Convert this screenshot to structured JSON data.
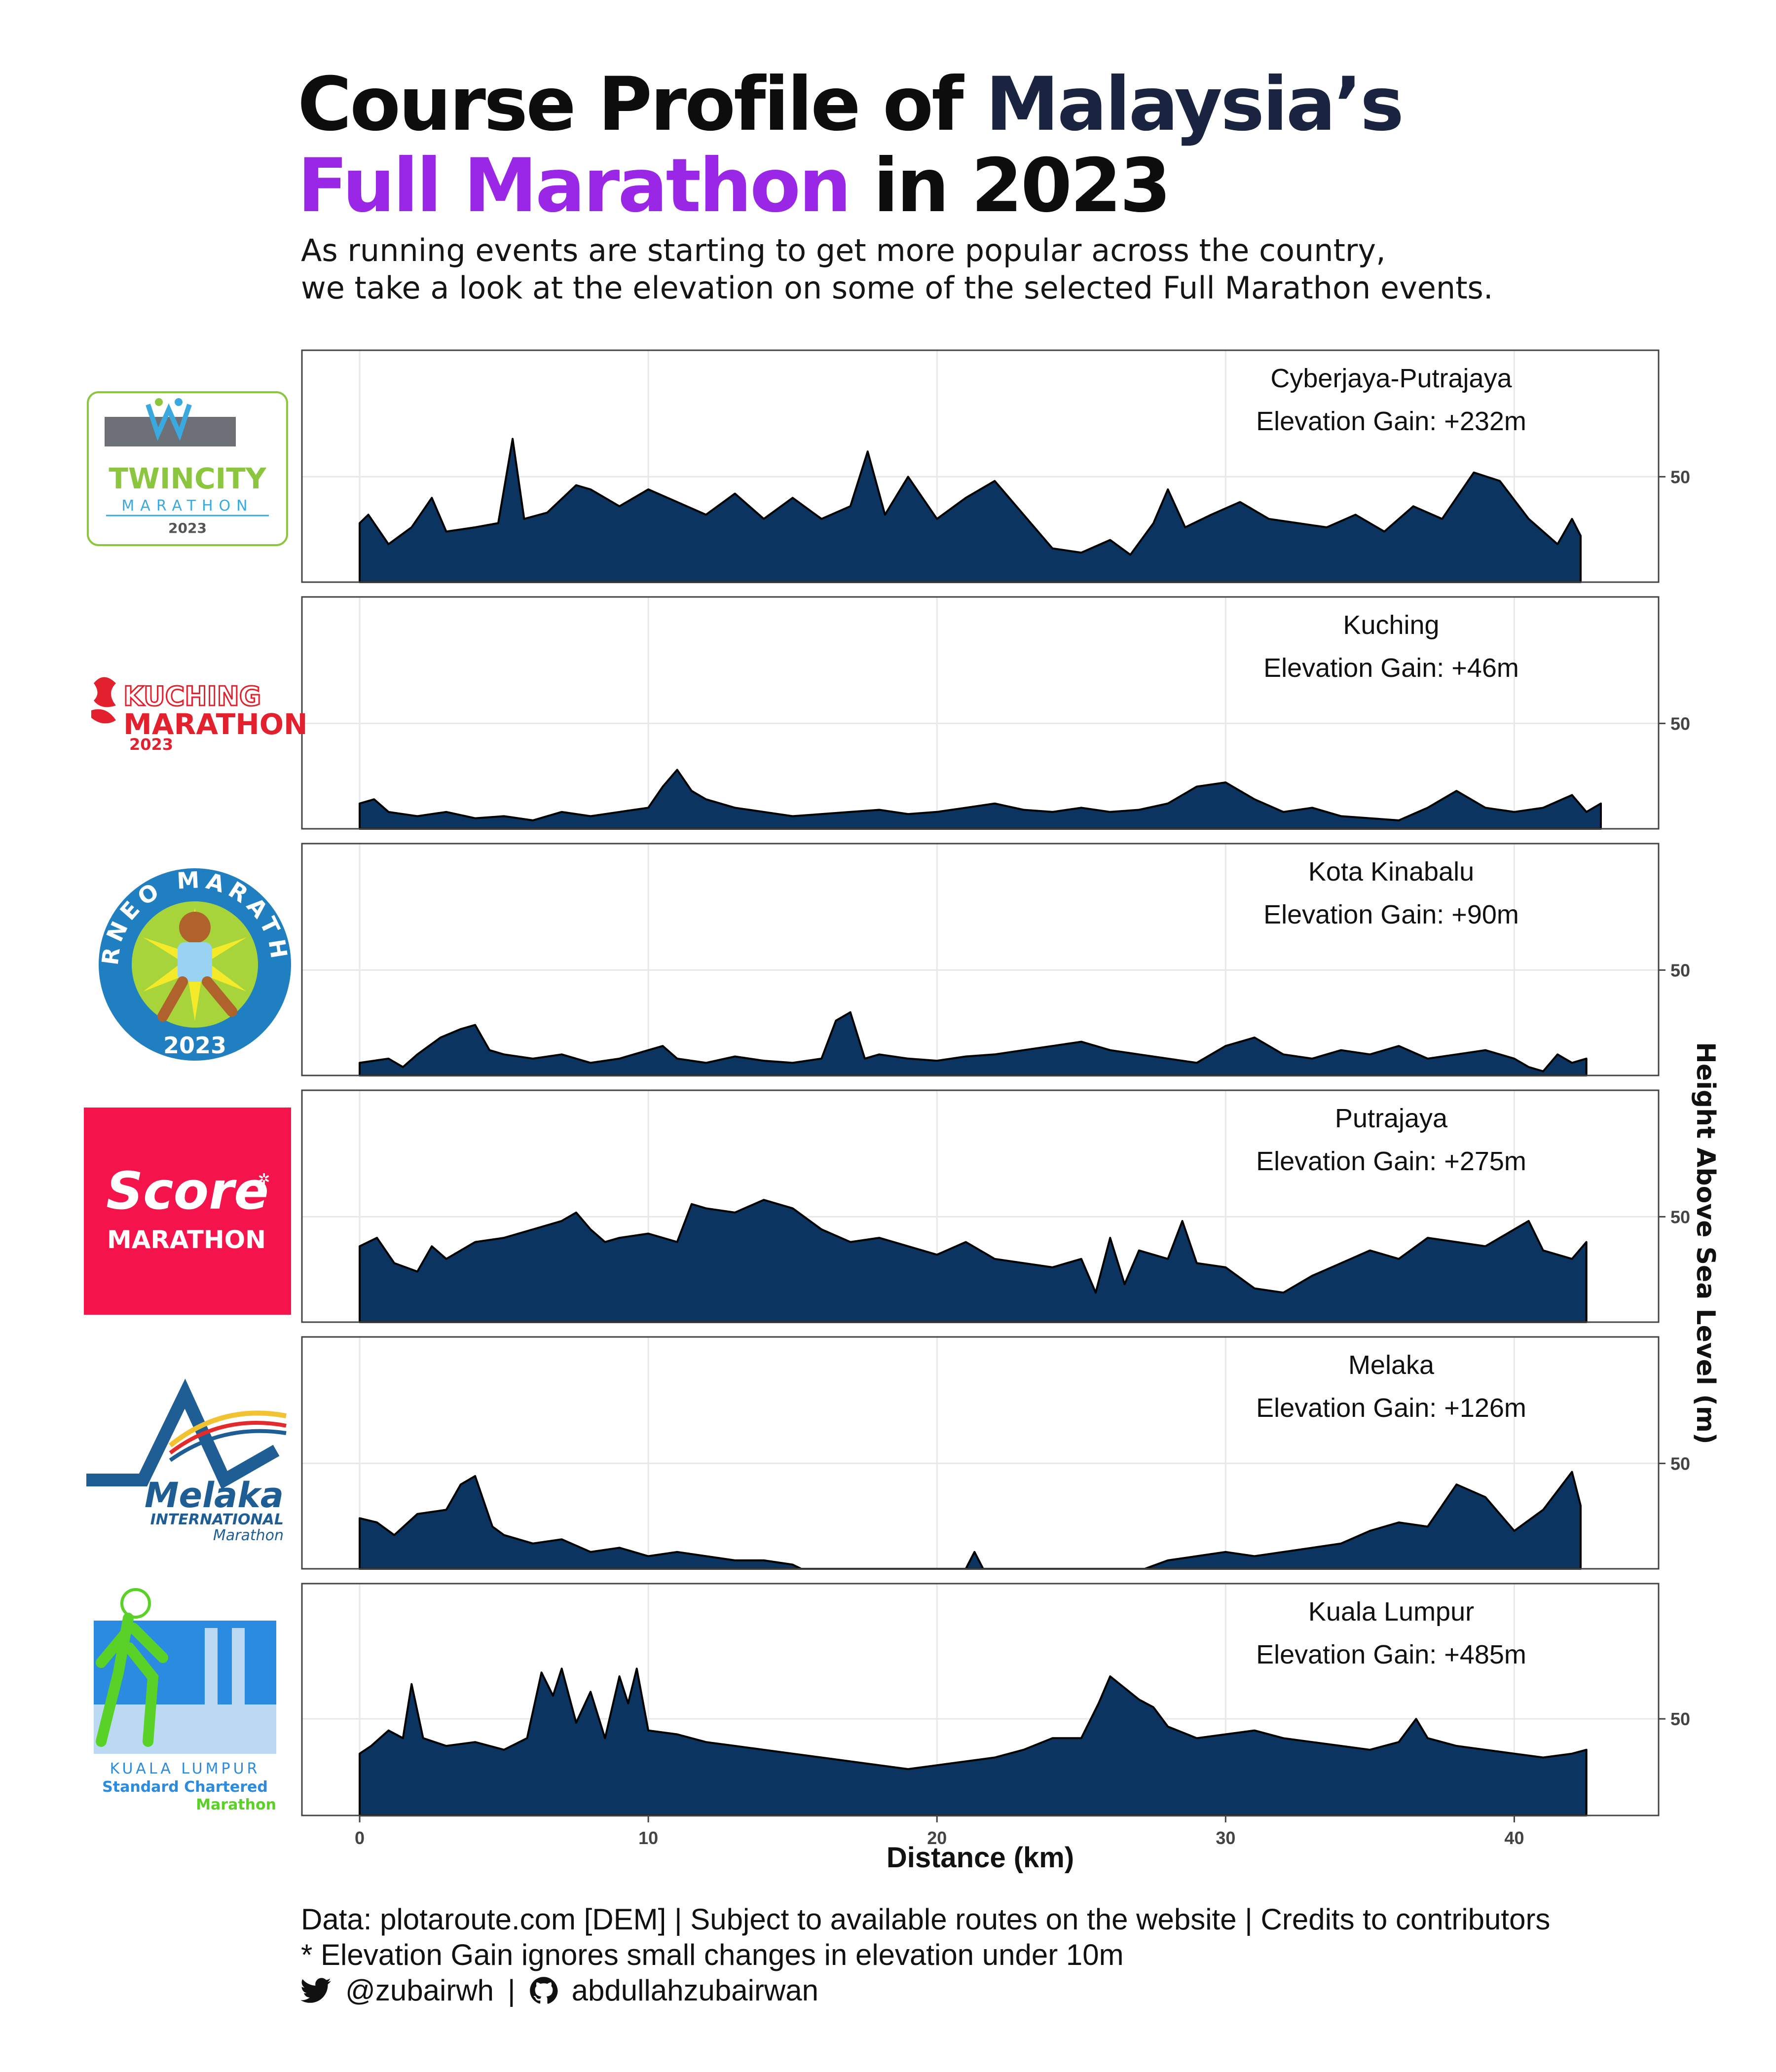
{
  "title": {
    "part1": "Course Profile of ",
    "part2": "Malaysia’s",
    "part3": "Full Marathon",
    "part4": " in 2023"
  },
  "subtitle": {
    "line1": "As running events are starting to get more popular across the country,",
    "line2": "we take a look at the elevation on some of the selected Full Marathon events."
  },
  "colors": {
    "area_fill": "#0b3461",
    "title_navy": "#1a2340",
    "title_purple": "#9b27e6",
    "panel_border": "#444444",
    "grid": "#e8e8e8"
  },
  "chart_data": {
    "type": "area",
    "xlabel": "Distance (km)",
    "ylabel": "Height Above Sea Level (m)",
    "xlim": [
      -2,
      45
    ],
    "x_ticks": [
      0,
      10,
      20,
      30,
      40
    ],
    "y_tick_label": "50",
    "grid": true,
    "panels": [
      {
        "name": "Cyberjaya-Putrajaya",
        "gain": "Elevation Gain: +232m",
        "ylim": [
          0,
          110
        ],
        "ytick": 50,
        "x": [
          0,
          0.3,
          1,
          1.8,
          2.5,
          3,
          4,
          4.8,
          5.3,
          5.7,
          6.5,
          7.5,
          8,
          9,
          10,
          11,
          12,
          13,
          14,
          15,
          16,
          17,
          17.6,
          18.2,
          19,
          20,
          21,
          22,
          23,
          24,
          25,
          26,
          26.7,
          27.5,
          28,
          28.6,
          29.5,
          30.5,
          31.5,
          32.5,
          33.5,
          34.5,
          35.5,
          36.5,
          37.5,
          38.6,
          39.5,
          40.5,
          41.5,
          42,
          42.3
        ],
        "y": [
          28,
          32,
          18,
          26,
          40,
          24,
          26,
          28,
          68,
          30,
          33,
          46,
          44,
          36,
          44,
          38,
          32,
          42,
          30,
          40,
          30,
          36,
          62,
          32,
          50,
          30,
          40,
          48,
          32,
          16,
          14,
          20,
          13,
          28,
          44,
          26,
          32,
          38,
          30,
          28,
          26,
          32,
          24,
          36,
          30,
          52,
          48,
          30,
          18,
          30,
          22
        ]
      },
      {
        "name": "Kuching",
        "gain": "Elevation Gain: +46m",
        "ylim": [
          0,
          110
        ],
        "ytick": 50,
        "x": [
          0,
          0.5,
          1,
          2,
          3,
          4,
          5,
          6,
          7,
          8,
          9,
          10,
          10.5,
          11,
          11.5,
          12,
          13,
          14,
          15,
          16,
          17,
          18,
          19,
          20,
          21,
          22,
          23,
          24,
          25,
          26,
          27,
          28,
          29,
          30,
          31,
          32,
          33,
          34,
          35,
          36,
          37,
          38,
          39,
          40,
          41,
          42,
          42.5,
          43
        ],
        "y": [
          12,
          14,
          8,
          6,
          8,
          5,
          6,
          4,
          8,
          6,
          8,
          10,
          20,
          28,
          18,
          14,
          10,
          8,
          6,
          7,
          8,
          9,
          7,
          8,
          10,
          12,
          9,
          8,
          10,
          8,
          9,
          12,
          20,
          22,
          14,
          8,
          10,
          6,
          5,
          4,
          10,
          18,
          10,
          8,
          10,
          16,
          8,
          12
        ]
      },
      {
        "name": "Kota Kinabalu",
        "gain": "Elevation Gain: +90m",
        "ylim": [
          0,
          110
        ],
        "ytick": 50,
        "x": [
          0,
          1,
          1.5,
          2,
          2.8,
          3.5,
          4,
          4.5,
          5,
          6,
          7,
          8,
          9,
          10,
          10.5,
          11,
          12,
          13,
          14,
          15,
          16,
          16.5,
          17,
          17.5,
          18,
          19,
          20,
          21,
          22,
          23,
          24,
          25,
          26,
          27,
          28,
          29,
          30,
          31,
          32,
          33,
          34,
          35,
          36,
          37,
          38,
          39,
          40,
          40.5,
          41,
          41.5,
          42,
          42.5
        ],
        "y": [
          6,
          8,
          4,
          10,
          18,
          22,
          24,
          12,
          10,
          8,
          10,
          6,
          8,
          12,
          14,
          8,
          6,
          9,
          7,
          6,
          8,
          26,
          30,
          8,
          10,
          8,
          7,
          9,
          10,
          12,
          14,
          16,
          12,
          10,
          8,
          6,
          14,
          18,
          10,
          8,
          12,
          10,
          14,
          8,
          10,
          12,
          8,
          4,
          2,
          10,
          6,
          8
        ]
      },
      {
        "name": "Putrajaya",
        "gain": "Elevation Gain: +275m",
        "ylim": [
          0,
          110
        ],
        "ytick": 50,
        "x": [
          0,
          0.6,
          1.2,
          2,
          2.5,
          3,
          4,
          5,
          6,
          7,
          7.5,
          8,
          8.5,
          9,
          10,
          11,
          11.5,
          12,
          13,
          14,
          15,
          16,
          17,
          18,
          19,
          20,
          21,
          22,
          23,
          24,
          25,
          25.5,
          26,
          26.5,
          27,
          28,
          28.5,
          29,
          30,
          31,
          32,
          33,
          34,
          35,
          36,
          37,
          38,
          39,
          40,
          40.5,
          41,
          42,
          42.5
        ],
        "y": [
          36,
          40,
          28,
          24,
          36,
          30,
          38,
          40,
          44,
          48,
          52,
          44,
          38,
          40,
          42,
          38,
          56,
          54,
          52,
          58,
          54,
          44,
          38,
          40,
          36,
          32,
          38,
          30,
          28,
          26,
          30,
          14,
          40,
          18,
          34,
          30,
          48,
          28,
          26,
          16,
          14,
          22,
          28,
          34,
          30,
          40,
          38,
          36,
          44,
          48,
          34,
          30,
          38
        ]
      },
      {
        "name": "Melaka",
        "gain": "Elevation Gain: +126m",
        "ylim": [
          0,
          110
        ],
        "ytick": 50,
        "x": [
          0,
          0.6,
          1.2,
          2,
          3,
          3.5,
          4,
          4.6,
          5,
          6,
          7,
          8,
          9,
          10,
          11,
          12,
          13,
          14,
          15,
          15.3,
          16,
          20,
          21,
          21.3,
          21.6,
          22,
          24,
          26,
          27.2,
          28,
          29,
          30,
          31,
          32,
          33,
          34,
          35,
          36,
          37,
          38,
          39,
          40,
          41,
          42,
          42.3
        ],
        "y": [
          24,
          22,
          16,
          26,
          28,
          40,
          44,
          20,
          16,
          12,
          14,
          8,
          10,
          6,
          8,
          6,
          4,
          4,
          2,
          0,
          0,
          0,
          0,
          8,
          0,
          0,
          0,
          0,
          0,
          4,
          6,
          8,
          6,
          8,
          10,
          12,
          18,
          22,
          20,
          40,
          34,
          18,
          28,
          46,
          30
        ]
      },
      {
        "name": "Kuala Lumpur",
        "gain": "Elevation Gain: +485m",
        "ylim": [
          0,
          120
        ],
        "ytick": 50,
        "x": [
          0,
          0.4,
          1,
          1.5,
          1.8,
          2.2,
          3,
          4,
          5,
          5.8,
          6.3,
          6.7,
          7,
          7.5,
          8,
          8.5,
          9,
          9.3,
          9.6,
          10,
          11,
          12,
          13,
          14,
          15,
          16,
          17,
          18,
          19,
          20,
          21,
          22,
          23,
          24,
          25,
          25.6,
          26,
          26.5,
          27,
          27.5,
          28,
          29,
          30,
          31,
          32,
          33,
          34,
          35,
          36,
          36.6,
          37,
          38,
          39,
          40,
          41,
          42,
          42.5
        ],
        "y": [
          32,
          36,
          44,
          40,
          68,
          40,
          36,
          38,
          34,
          40,
          74,
          62,
          76,
          48,
          64,
          40,
          72,
          58,
          76,
          44,
          42,
          38,
          36,
          34,
          32,
          30,
          28,
          26,
          24,
          26,
          28,
          30,
          34,
          40,
          40,
          58,
          72,
          66,
          60,
          56,
          46,
          40,
          42,
          44,
          40,
          38,
          36,
          34,
          38,
          50,
          40,
          36,
          34,
          32,
          30,
          32,
          34
        ]
      }
    ]
  },
  "logos": [
    {
      "top": "TWINCITY",
      "bottom": "MARATHON",
      "year": "2023"
    },
    {
      "top": "KUCHING",
      "bottom": "MARATHON",
      "year": "2023"
    },
    {
      "ring": "BORNEO MARATHON",
      "year": "2023"
    },
    {
      "top": "Score",
      "bottom": "MARATHON"
    },
    {
      "top": "Melaka",
      "mid": "INTERNATIONAL",
      "bottom": "Marathon"
    },
    {
      "top": "KUALA LUMPUR",
      "mid": "Standard Chartered",
      "bottom": "Marathon"
    }
  ],
  "footer": {
    "line1": "Data: plotaroute.com [DEM] | Subject to available routes on the website | Credits to contributors",
    "line2": "* Elevation Gain ignores small changes in elevation under 10m",
    "twitter": "@zubairwh",
    "separator": "|",
    "github": "abdullahzubairwan"
  }
}
